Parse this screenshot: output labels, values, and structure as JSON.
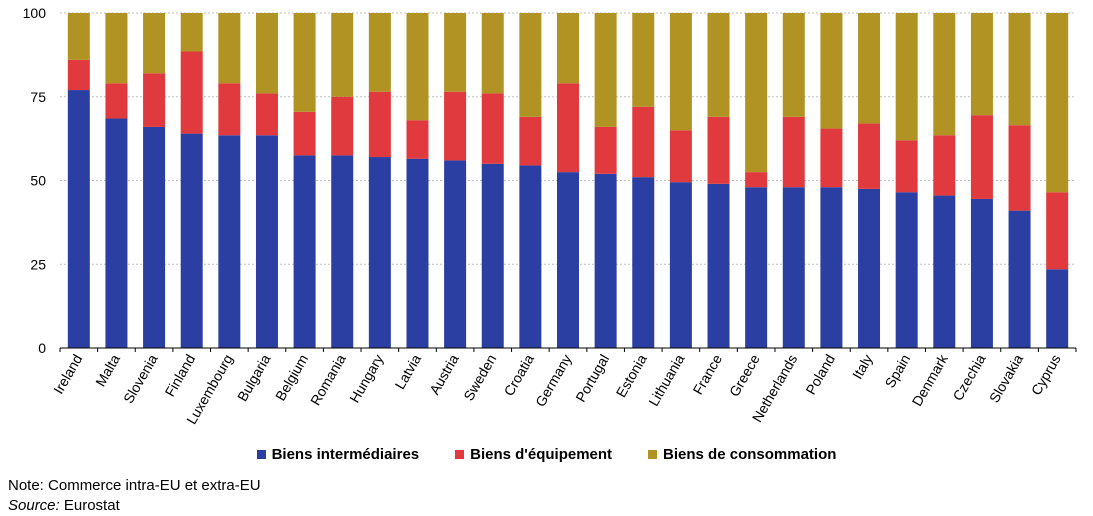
{
  "chart_data": {
    "type": "bar",
    "stacked": true,
    "categories": [
      "Ireland",
      "Malta",
      "Slovenia",
      "Finland",
      "Luxembourg",
      "Bulgaria",
      "Belgium",
      "Romania",
      "Hungary",
      "Latvia",
      "Austria",
      "Sweden",
      "Croatia",
      "Germany",
      "Portugal",
      "Estonia",
      "Lithuania",
      "France",
      "Greece",
      "Netherlands",
      "Poland",
      "Italy",
      "Spain",
      "Denmark",
      "Czechia",
      "Slovakia",
      "Cyprus"
    ],
    "series": [
      {
        "name": "Biens intermédiaires",
        "color": "#2b3fa2",
        "values": [
          77,
          68.5,
          66,
          64,
          63.5,
          63.5,
          57.5,
          57.5,
          57,
          56.5,
          56,
          55,
          54.5,
          52.5,
          52,
          51,
          49.5,
          49,
          48,
          48,
          48,
          47.5,
          46.5,
          45.5,
          44.5,
          41,
          23.5
        ]
      },
      {
        "name": "Biens d'équipement",
        "color": "#e0393e",
        "values": [
          9,
          10.5,
          16,
          24.5,
          15.5,
          12.5,
          13,
          17.5,
          19.5,
          11.5,
          20.5,
          21,
          14.5,
          26.5,
          14,
          21,
          15.5,
          20,
          4.5,
          21,
          17.5,
          19.5,
          15.5,
          18,
          25,
          25.5,
          23
        ]
      },
      {
        "name": "Biens de consommation",
        "color": "#b09322",
        "values": [
          14,
          21,
          18,
          11.5,
          21,
          24,
          29.5,
          25,
          23.5,
          32,
          23.5,
          24,
          31,
          21,
          34,
          28,
          35,
          31,
          47.5,
          31,
          34.5,
          33,
          38,
          36.5,
          30.5,
          33.5,
          53.5
        ]
      }
    ],
    "ylim": [
      0,
      100
    ],
    "yticks": [
      0,
      25,
      50,
      75,
      100
    ],
    "grid": true,
    "legend_position": "bottom"
  },
  "footnote": {
    "note": "Note: Commerce intra-EU et extra-EU",
    "source_label": "Source:",
    "source_value": " Eurostat"
  }
}
